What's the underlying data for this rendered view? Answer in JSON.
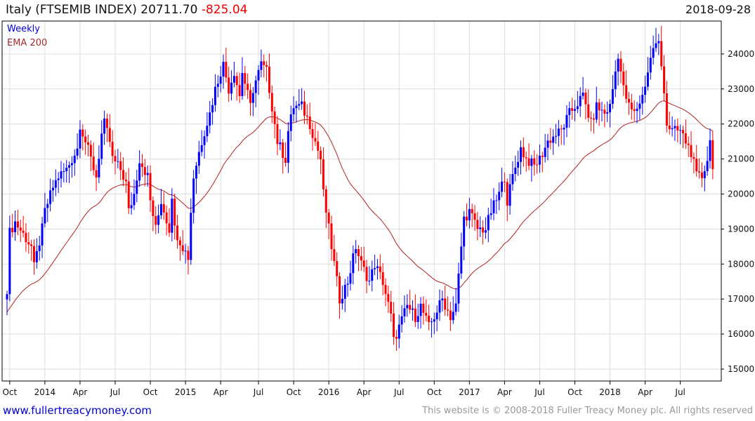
{
  "header": {
    "title": "Italy (FTSEMIB INDEX) 20711.70",
    "change": "-825.04",
    "date": "2018-09-28"
  },
  "legend": {
    "period": "Weekly",
    "indicator": "EMA 200"
  },
  "footer": {
    "site": "www.fullertreacymoney.com",
    "copyright": "This website is © 2008-2018 Fuller Treacy Money plc. All rights reserved"
  },
  "colors": {
    "up": "#0000ff",
    "down": "#ff0000",
    "ema": "#b22222",
    "grid": "#dddddd"
  },
  "chart_data": {
    "type": "candlestick",
    "title": "Italy (FTSEMIB INDEX)",
    "frequency": "weekly",
    "ylim": [
      14700,
      24900
    ],
    "yticks": [
      15000,
      16000,
      17000,
      18000,
      19000,
      20000,
      21000,
      22000,
      23000,
      24000
    ],
    "xticks": [
      {
        "label": "Oct",
        "week": 1
      },
      {
        "label": "2014",
        "week": 14
      },
      {
        "label": "Apr",
        "week": 27
      },
      {
        "label": "Jul",
        "week": 40
      },
      {
        "label": "Oct",
        "week": 53
      },
      {
        "label": "2015",
        "week": 66
      },
      {
        "label": "Apr",
        "week": 79
      },
      {
        "label": "Jul",
        "week": 93
      },
      {
        "label": "Oct",
        "week": 106
      },
      {
        "label": "2016",
        "week": 119
      },
      {
        "label": "Apr",
        "week": 132
      },
      {
        "label": "Jul",
        "week": 145
      },
      {
        "label": "Oct",
        "week": 158
      },
      {
        "label": "2017",
        "week": 171
      },
      {
        "label": "Apr",
        "week": 184
      },
      {
        "label": "Jul",
        "week": 197
      },
      {
        "label": "Oct",
        "week": 210
      },
      {
        "label": "2018",
        "week": 223
      },
      {
        "label": "Apr",
        "week": 236
      },
      {
        "label": "Jul",
        "week": 249
      }
    ],
    "weeks": 262,
    "ema_period_weeks": 40,
    "ema_start": 16600,
    "close_anchors": [
      [
        0,
        17300
      ],
      [
        1,
        18900
      ],
      [
        3,
        19200
      ],
      [
        9,
        18500
      ],
      [
        10,
        17900
      ],
      [
        13,
        19000
      ],
      [
        14,
        19500
      ],
      [
        17,
        20200
      ],
      [
        19,
        20500
      ],
      [
        22,
        20700
      ],
      [
        26,
        21300
      ],
      [
        27,
        22000
      ],
      [
        29,
        21500
      ],
      [
        31,
        21000
      ],
      [
        33,
        20500
      ],
      [
        35,
        21700
      ],
      [
        36,
        22000
      ],
      [
        38,
        21500
      ],
      [
        39,
        21000
      ],
      [
        42,
        20700
      ],
      [
        44,
        20300
      ],
      [
        45,
        19500
      ],
      [
        47,
        20000
      ],
      [
        49,
        21000
      ],
      [
        52,
        20500
      ],
      [
        53,
        19800
      ],
      [
        55,
        19000
      ],
      [
        57,
        19800
      ],
      [
        60,
        19000
      ],
      [
        61,
        20000
      ],
      [
        62,
        19000
      ],
      [
        65,
        18500
      ],
      [
        67,
        18200
      ],
      [
        68,
        19500
      ],
      [
        69,
        20500
      ],
      [
        71,
        21200
      ],
      [
        73,
        21800
      ],
      [
        75,
        22300
      ],
      [
        77,
        23000
      ],
      [
        79,
        23500
      ],
      [
        80,
        23700
      ],
      [
        82,
        23000
      ],
      [
        84,
        23500
      ],
      [
        86,
        22800
      ],
      [
        87,
        23500
      ],
      [
        90,
        22500
      ],
      [
        91,
        23000
      ],
      [
        94,
        23700
      ],
      [
        96,
        23500
      ],
      [
        98,
        22500
      ],
      [
        100,
        21500
      ],
      [
        103,
        21000
      ],
      [
        104,
        21800
      ],
      [
        106,
        22500
      ],
      [
        109,
        22500
      ],
      [
        112,
        22000
      ],
      [
        114,
        21500
      ],
      [
        116,
        21000
      ],
      [
        117,
        20000
      ],
      [
        119,
        19000
      ],
      [
        121,
        18000
      ],
      [
        123,
        17000
      ],
      [
        126,
        17500
      ],
      [
        129,
        18500
      ],
      [
        131,
        18000
      ],
      [
        134,
        17500
      ],
      [
        136,
        18000
      ],
      [
        139,
        17500
      ],
      [
        142,
        16500
      ],
      [
        143,
        15800
      ],
      [
        145,
        16200
      ],
      [
        148,
        16800
      ],
      [
        151,
        16500
      ],
      [
        153,
        16800
      ],
      [
        156,
        16200
      ],
      [
        158,
        16500
      ],
      [
        161,
        17000
      ],
      [
        164,
        16500
      ],
      [
        166,
        16800
      ],
      [
        168,
        18500
      ],
      [
        169,
        19300
      ],
      [
        171,
        19500
      ],
      [
        174,
        19000
      ],
      [
        177,
        19000
      ],
      [
        179,
        19500
      ],
      [
        182,
        20000
      ],
      [
        184,
        20500
      ],
      [
        185,
        19800
      ],
      [
        187,
        20500
      ],
      [
        190,
        21300
      ],
      [
        192,
        21000
      ],
      [
        195,
        20800
      ],
      [
        197,
        21000
      ],
      [
        200,
        21500
      ],
      [
        203,
        21700
      ],
      [
        205,
        21800
      ],
      [
        208,
        22300
      ],
      [
        210,
        22500
      ],
      [
        213,
        22800
      ],
      [
        216,
        22000
      ],
      [
        218,
        22500
      ],
      [
        221,
        22300
      ],
      [
        223,
        22500
      ],
      [
        225,
        23500
      ],
      [
        226,
        24000
      ],
      [
        228,
        23000
      ],
      [
        230,
        22500
      ],
      [
        232,
        22300
      ],
      [
        235,
        22800
      ],
      [
        237,
        23500
      ],
      [
        239,
        24200
      ],
      [
        241,
        24300
      ],
      [
        243,
        23000
      ],
      [
        244,
        22000
      ],
      [
        246,
        21800
      ],
      [
        249,
        21800
      ],
      [
        251,
        21500
      ],
      [
        253,
        21200
      ],
      [
        255,
        20500
      ],
      [
        257,
        20500
      ],
      [
        259,
        21000
      ],
      [
        260,
        21500
      ],
      [
        261,
        20711.7
      ]
    ]
  }
}
